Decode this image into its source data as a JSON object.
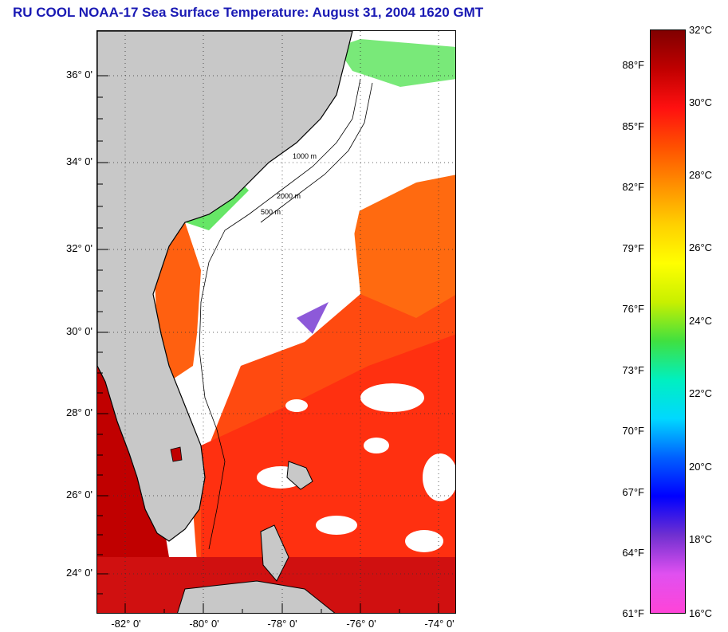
{
  "title": "RU COOL  NOAA-17  Sea Surface Temperature:  August 31, 2004 1620 GMT",
  "map": {
    "lat_labels": [
      "36° 0'",
      "34° 0'",
      "32° 0'",
      "30° 0'",
      "28° 0'",
      "26° 0'",
      "24° 0'"
    ],
    "lon_labels": [
      "-82° 0'",
      "-80° 0'",
      "-78° 0'",
      "-76° 0'",
      "-74° 0'"
    ],
    "isobath_labels": [
      "500 m",
      "1000 m",
      "2000 m"
    ],
    "land_color": "#c8c8c8",
    "cloud_color": "#ffffff"
  },
  "colorbar": {
    "celsius_labels": [
      "32°C",
      "30°C",
      "28°C",
      "26°C",
      "24°C",
      "22°C",
      "20°C",
      "18°C",
      "16°C"
    ],
    "fahrenheit_labels": [
      "88°F",
      "85°F",
      "82°F",
      "79°F",
      "76°F",
      "73°F",
      "70°F",
      "67°F",
      "64°F",
      "61°F"
    ],
    "stops": [
      "#ff44d8",
      "#e050f0",
      "#7030d0",
      "#0000ff",
      "#0060ff",
      "#00d8ff",
      "#00f0c0",
      "#40e040",
      "#c8f000",
      "#ffff00",
      "#ffd000",
      "#ff9000",
      "#ff5000",
      "#ff1010",
      "#c00000",
      "#800000"
    ]
  }
}
